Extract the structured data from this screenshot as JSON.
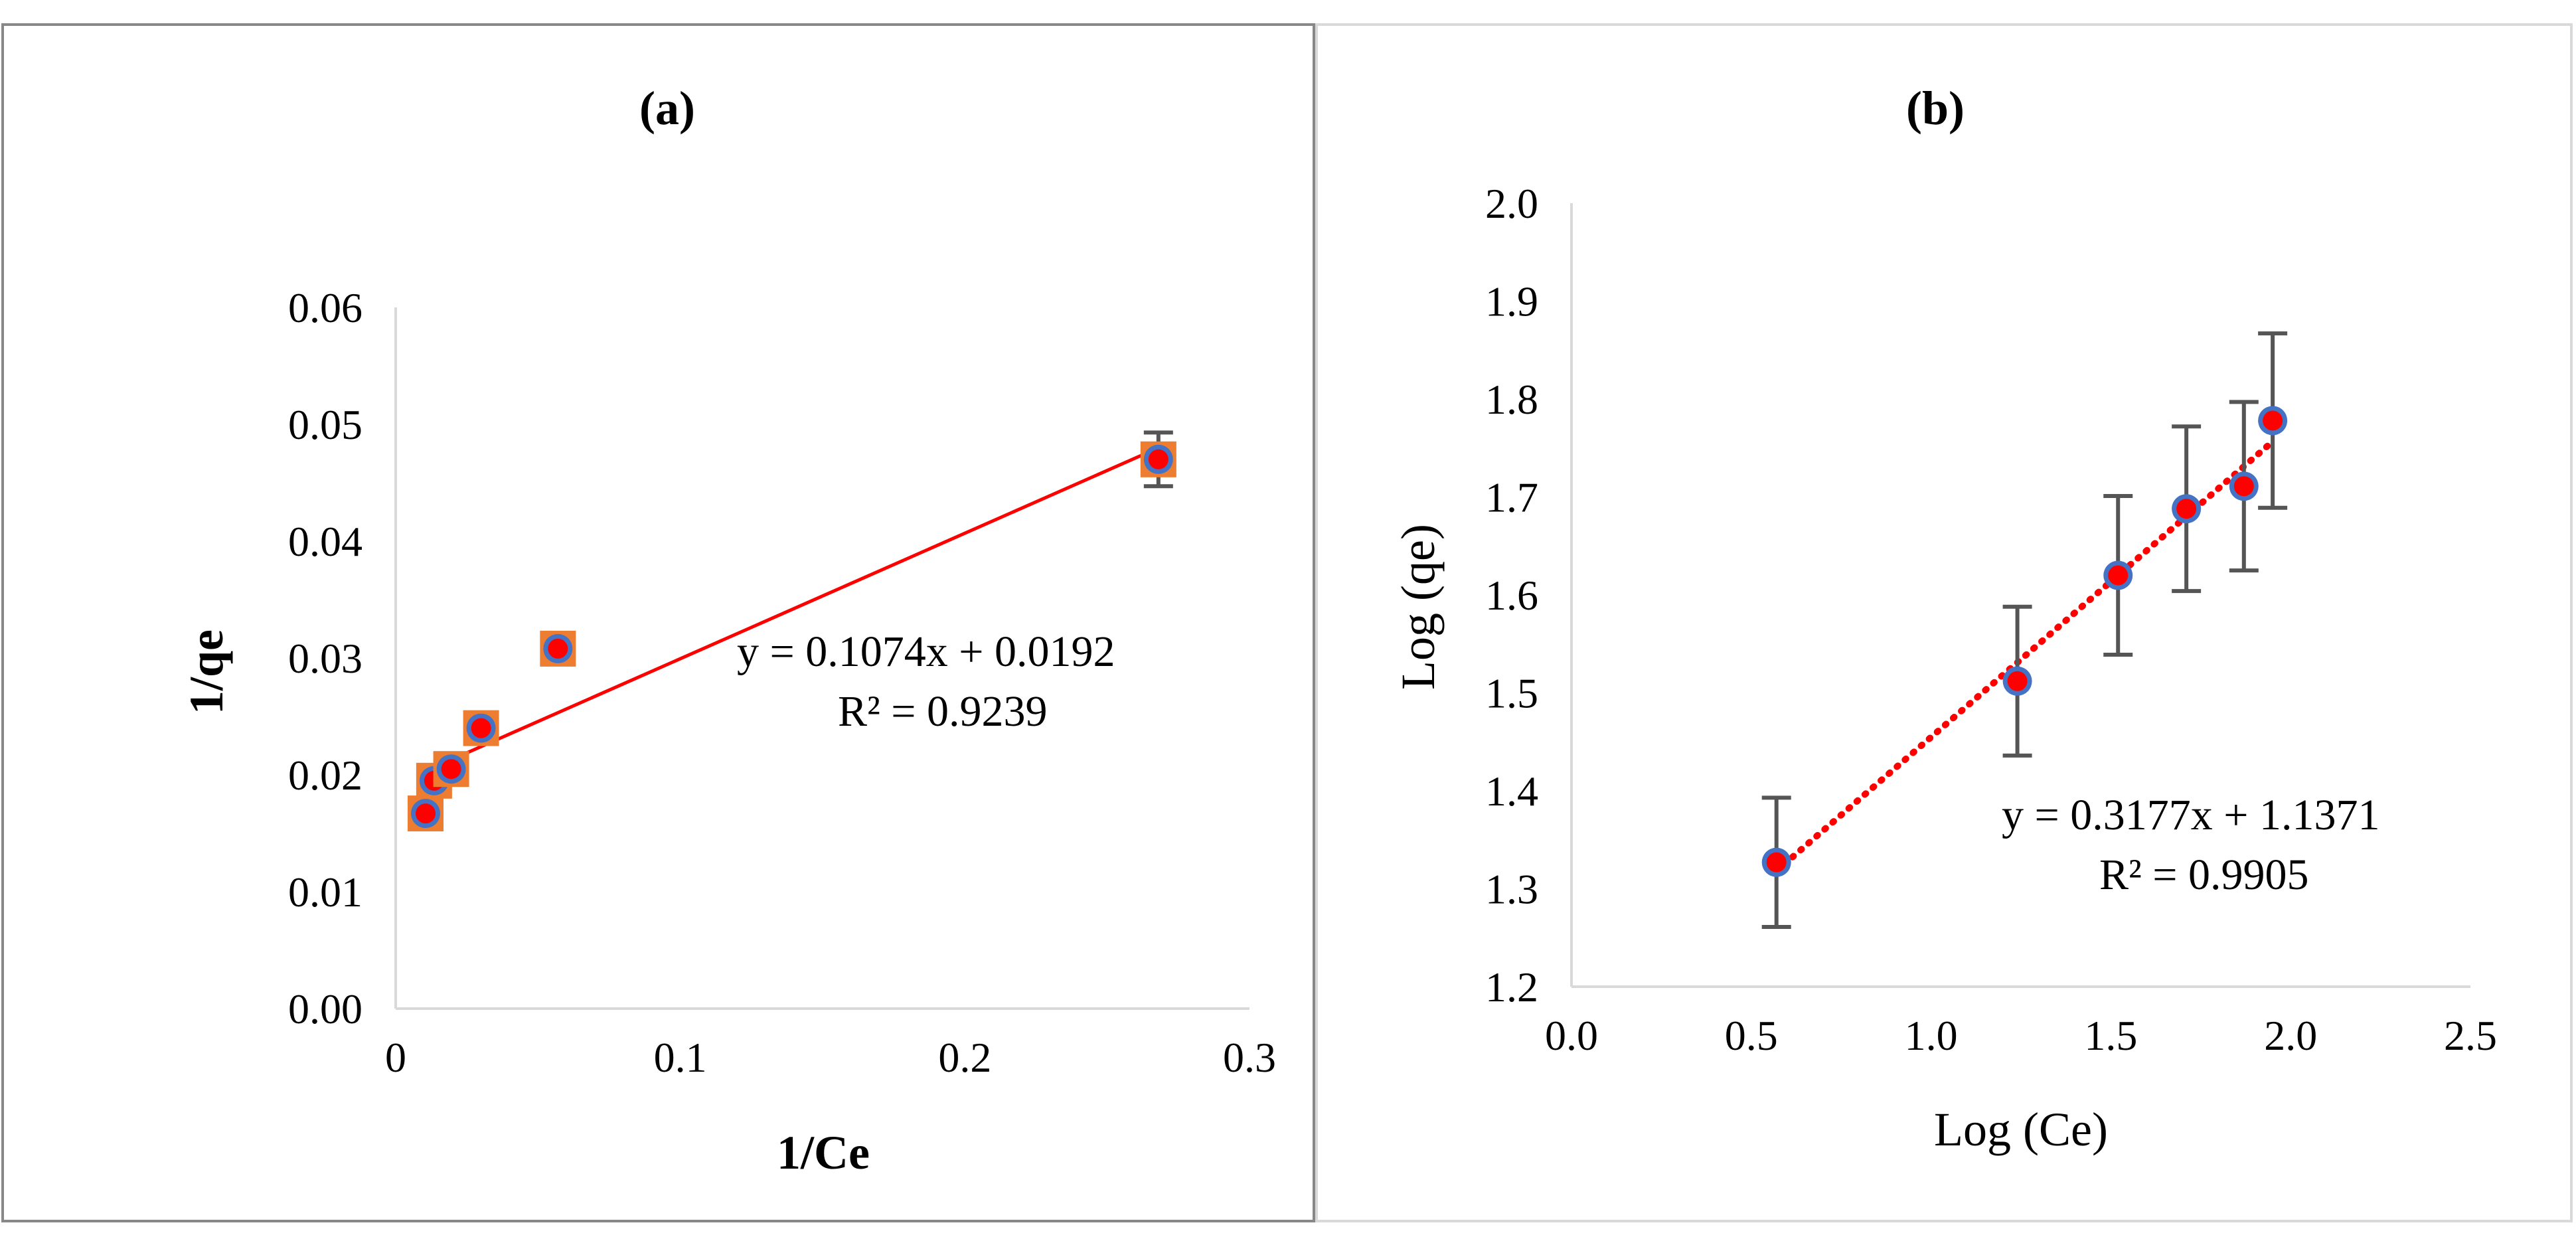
{
  "chart_data": [
    {
      "type": "scatter",
      "title": "(a)",
      "xlabel": "1/Ce",
      "ylabel": "1/qe",
      "xlim": [
        0,
        0.3
      ],
      "ylim": [
        0,
        0.06
      ],
      "xticks": [
        "0",
        "0.1",
        "0.2",
        "0.3"
      ],
      "yticks": [
        "0.00",
        "0.01",
        "0.02",
        "0.03",
        "0.04",
        "0.05",
        "0.06"
      ],
      "points": [
        {
          "x": 0.0105,
          "y": 0.0167
        },
        {
          "x": 0.0135,
          "y": 0.0195
        },
        {
          "x": 0.0195,
          "y": 0.0205
        },
        {
          "x": 0.03,
          "y": 0.024
        },
        {
          "x": 0.057,
          "y": 0.0308
        },
        {
          "x": 0.268,
          "y": 0.047
        }
      ],
      "error_bars": [
        0.0003,
        0.0003,
        0.0003,
        0.0003,
        0.001,
        0.0023
      ],
      "trendline": {
        "slope": 0.1074,
        "intercept": 0.0192,
        "x_from": 0.0105,
        "x_to": 0.268,
        "style": "solid",
        "color": "#ff0000"
      },
      "equation": "y = 0.1074x + 0.0192",
      "r_squared": "R² = 0.9239",
      "grid": false
    },
    {
      "type": "scatter",
      "title": "(b)",
      "xlabel": "Log (Ce)",
      "ylabel": "Log (qe)",
      "xlim": [
        0,
        2.5
      ],
      "ylim": [
        1.2,
        2.0
      ],
      "xticks": [
        "0.0",
        "0.5",
        "1.0",
        "1.5",
        "2.0",
        "2.5"
      ],
      "yticks": [
        "1.2",
        "1.3",
        "1.4",
        "1.5",
        "1.6",
        "1.7",
        "1.8",
        "1.9",
        "2.0"
      ],
      "points": [
        {
          "x": 0.57,
          "y": 1.327
        },
        {
          "x": 1.24,
          "y": 1.512
        },
        {
          "x": 1.52,
          "y": 1.62
        },
        {
          "x": 1.71,
          "y": 1.688
        },
        {
          "x": 1.87,
          "y": 1.711
        },
        {
          "x": 1.95,
          "y": 1.778
        }
      ],
      "error_bars": [
        0.066,
        0.076,
        0.081,
        0.084,
        0.086,
        0.089
      ],
      "trendline": {
        "slope": 0.3177,
        "intercept": 1.1371,
        "x_from": 0.57,
        "x_to": 1.95,
        "style": "dotted",
        "color": "#ff0000"
      },
      "equation": "y = 0.3177x + 1.1371",
      "r_squared": "R² = 0.9905",
      "grid": false
    }
  ],
  "colors": {
    "marker_fill": "#ff0000",
    "marker_ring_a": "#ed7d31",
    "marker_ring_b": "#4472c4",
    "error_bar": "#555555",
    "axis": "#d9d9d9",
    "frame": "#888888"
  }
}
